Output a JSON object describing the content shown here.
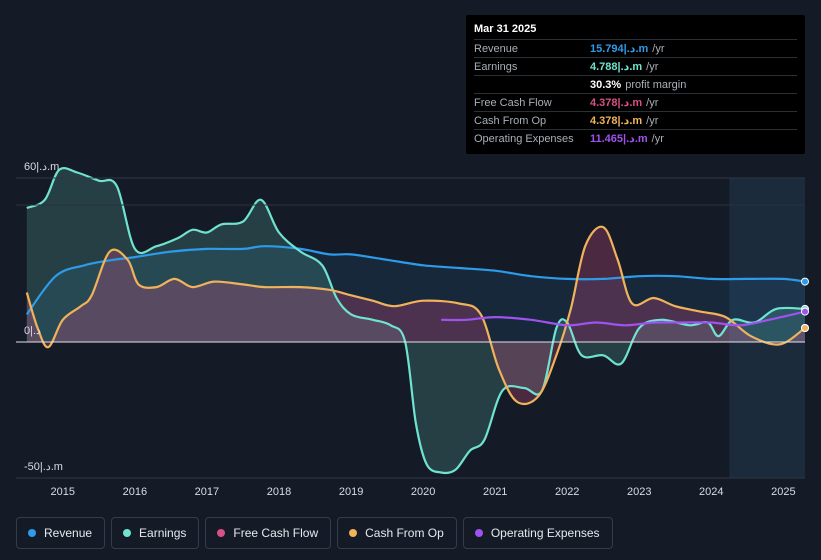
{
  "tooltip": {
    "date": "Mar 31 2025",
    "rows": [
      {
        "label": "Revenue",
        "value": "15.794|.د.m",
        "unit": "/yr",
        "color": "#2e9bea"
      },
      {
        "label": "Earnings",
        "value": "4.788|.د.m",
        "unit": "/yr",
        "color": "#6fe3cf"
      },
      {
        "label": "",
        "value": "30.3%",
        "unit": "profit margin",
        "color": "#ffffff"
      },
      {
        "label": "Free Cash Flow",
        "value": "4.378|.د.m",
        "unit": "/yr",
        "color": "#d94f86"
      },
      {
        "label": "Cash From Op",
        "value": "4.378|.د.m",
        "unit": "/yr",
        "color": "#f0b25a"
      },
      {
        "label": "Operating Expenses",
        "value": "11.465|.د.m",
        "unit": "/yr",
        "color": "#9f52ef"
      }
    ]
  },
  "legend": [
    {
      "label": "Revenue",
      "color": "#2e9bea"
    },
    {
      "label": "Earnings",
      "color": "#6fe3cf"
    },
    {
      "label": "Free Cash Flow",
      "color": "#d94f86"
    },
    {
      "label": "Cash From Op",
      "color": "#f0b25a"
    },
    {
      "label": "Operating Expenses",
      "color": "#9f52ef"
    }
  ],
  "chart_data": {
    "type": "area",
    "title": "",
    "xlabel": "",
    "ylabel": "",
    "y_tick_labels": {
      "top": "60|.د.m",
      "zero": "0|.د",
      "bottom": "-50|.د.m"
    },
    "ylim": [
      -50,
      60
    ],
    "xlim": [
      2014.35,
      2025.3
    ],
    "x_ticks": [
      "2015",
      "2016",
      "2017",
      "2018",
      "2019",
      "2020",
      "2021",
      "2022",
      "2023",
      "2024",
      "2025"
    ],
    "forecast_shade_start": 2024.25,
    "series": [
      {
        "name": "Revenue",
        "color": "#2e9bea",
        "points": [
          [
            2014.5,
            10
          ],
          [
            2014.9,
            24
          ],
          [
            2015.3,
            28
          ],
          [
            2015.7,
            30
          ],
          [
            2016,
            31
          ],
          [
            2016.5,
            33
          ],
          [
            2017,
            34
          ],
          [
            2017.5,
            34
          ],
          [
            2017.8,
            35
          ],
          [
            2018.3,
            34
          ],
          [
            2018.7,
            32
          ],
          [
            2019,
            32
          ],
          [
            2019.5,
            30
          ],
          [
            2020,
            28
          ],
          [
            2020.5,
            27
          ],
          [
            2021,
            26
          ],
          [
            2021.5,
            24
          ],
          [
            2022,
            23
          ],
          [
            2022.5,
            23
          ],
          [
            2023,
            24
          ],
          [
            2023.5,
            24
          ],
          [
            2024,
            23
          ],
          [
            2024.5,
            23
          ],
          [
            2025,
            23
          ],
          [
            2025.3,
            22
          ]
        ]
      },
      {
        "name": "Earnings",
        "color": "#6fe3cf",
        "points": [
          [
            2014.5,
            49
          ],
          [
            2014.75,
            52
          ],
          [
            2014.95,
            63
          ],
          [
            2015.2,
            62
          ],
          [
            2015.5,
            59
          ],
          [
            2015.75,
            57
          ],
          [
            2016,
            34
          ],
          [
            2016.3,
            35
          ],
          [
            2016.6,
            38
          ],
          [
            2016.8,
            41
          ],
          [
            2017.0,
            40
          ],
          [
            2017.2,
            43
          ],
          [
            2017.5,
            44
          ],
          [
            2017.75,
            52
          ],
          [
            2018.0,
            40
          ],
          [
            2018.3,
            33
          ],
          [
            2018.6,
            28
          ],
          [
            2018.8,
            16
          ],
          [
            2019.0,
            10
          ],
          [
            2019.3,
            8
          ],
          [
            2019.55,
            6
          ],
          [
            2019.75,
            0
          ],
          [
            2019.9,
            -30
          ],
          [
            2020.05,
            -45
          ],
          [
            2020.25,
            -48
          ],
          [
            2020.45,
            -47
          ],
          [
            2020.65,
            -40
          ],
          [
            2020.85,
            -36
          ],
          [
            2021.1,
            -18
          ],
          [
            2021.4,
            -17
          ],
          [
            2021.65,
            -18
          ],
          [
            2021.85,
            5
          ],
          [
            2022.0,
            7
          ],
          [
            2022.2,
            -5
          ],
          [
            2022.5,
            -5
          ],
          [
            2022.75,
            -8
          ],
          [
            2023.0,
            5
          ],
          [
            2023.3,
            8
          ],
          [
            2023.7,
            6
          ],
          [
            2023.95,
            7
          ],
          [
            2024.1,
            2
          ],
          [
            2024.3,
            8
          ],
          [
            2024.6,
            7
          ],
          [
            2024.9,
            12
          ],
          [
            2025.3,
            12
          ]
        ]
      },
      {
        "name": "Cash From Op",
        "color": "#f0b25a",
        "points": [
          [
            2014.5,
            18
          ],
          [
            2014.65,
            5
          ],
          [
            2014.8,
            -2
          ],
          [
            2015.0,
            8
          ],
          [
            2015.25,
            13
          ],
          [
            2015.4,
            17
          ],
          [
            2015.65,
            33
          ],
          [
            2015.9,
            30
          ],
          [
            2016.05,
            21
          ],
          [
            2016.3,
            20
          ],
          [
            2016.55,
            23
          ],
          [
            2016.8,
            20
          ],
          [
            2017.1,
            22
          ],
          [
            2017.5,
            21
          ],
          [
            2017.8,
            20
          ],
          [
            2018.3,
            20
          ],
          [
            2018.7,
            19
          ],
          [
            2019.0,
            17
          ],
          [
            2019.3,
            15
          ],
          [
            2019.6,
            13
          ],
          [
            2020.0,
            15
          ],
          [
            2020.5,
            14
          ],
          [
            2020.8,
            10
          ],
          [
            2021.05,
            -10
          ],
          [
            2021.3,
            -22
          ],
          [
            2021.6,
            -20
          ],
          [
            2021.85,
            -5
          ],
          [
            2022.05,
            12
          ],
          [
            2022.25,
            35
          ],
          [
            2022.5,
            42
          ],
          [
            2022.7,
            30
          ],
          [
            2022.9,
            14
          ],
          [
            2023.2,
            16
          ],
          [
            2023.5,
            13
          ],
          [
            2023.85,
            11
          ],
          [
            2024.2,
            9
          ],
          [
            2024.55,
            2
          ],
          [
            2024.95,
            -1
          ],
          [
            2025.3,
            5
          ]
        ]
      },
      {
        "name": "Free Cash Flow",
        "color": "#d94f86",
        "points": [
          [
            2014.5,
            18
          ],
          [
            2014.65,
            5
          ],
          [
            2014.8,
            -2
          ],
          [
            2015.0,
            8
          ],
          [
            2015.25,
            13
          ],
          [
            2015.4,
            17
          ],
          [
            2015.65,
            33
          ],
          [
            2015.9,
            30
          ],
          [
            2016.05,
            21
          ],
          [
            2016.3,
            20
          ],
          [
            2016.55,
            23
          ],
          [
            2016.8,
            20
          ],
          [
            2017.1,
            22
          ],
          [
            2017.5,
            21
          ],
          [
            2017.8,
            20
          ],
          [
            2018.3,
            20
          ],
          [
            2018.7,
            19
          ],
          [
            2019.0,
            17
          ],
          [
            2019.3,
            15
          ],
          [
            2019.6,
            13
          ],
          [
            2020.0,
            15
          ],
          [
            2020.5,
            14
          ],
          [
            2020.8,
            10
          ],
          [
            2021.05,
            -10
          ],
          [
            2021.3,
            -22
          ],
          [
            2021.6,
            -20
          ],
          [
            2021.85,
            -5
          ],
          [
            2022.05,
            12
          ],
          [
            2022.25,
            35
          ],
          [
            2022.5,
            42
          ],
          [
            2022.7,
            30
          ],
          [
            2022.9,
            14
          ],
          [
            2023.2,
            16
          ],
          [
            2023.5,
            13
          ],
          [
            2023.85,
            11
          ],
          [
            2024.2,
            9
          ],
          [
            2024.55,
            2
          ],
          [
            2024.95,
            -1
          ],
          [
            2025.3,
            5
          ]
        ]
      },
      {
        "name": "Operating Expenses",
        "color": "#9f52ef",
        "points": [
          [
            2020.25,
            8
          ],
          [
            2020.6,
            8
          ],
          [
            2021.0,
            9
          ],
          [
            2021.5,
            8
          ],
          [
            2022.0,
            6
          ],
          [
            2022.4,
            7
          ],
          [
            2022.8,
            6
          ],
          [
            2023.2,
            7
          ],
          [
            2023.6,
            7
          ],
          [
            2024.0,
            7
          ],
          [
            2024.4,
            6
          ],
          [
            2024.8,
            8
          ],
          [
            2025.3,
            11
          ]
        ]
      }
    ]
  }
}
